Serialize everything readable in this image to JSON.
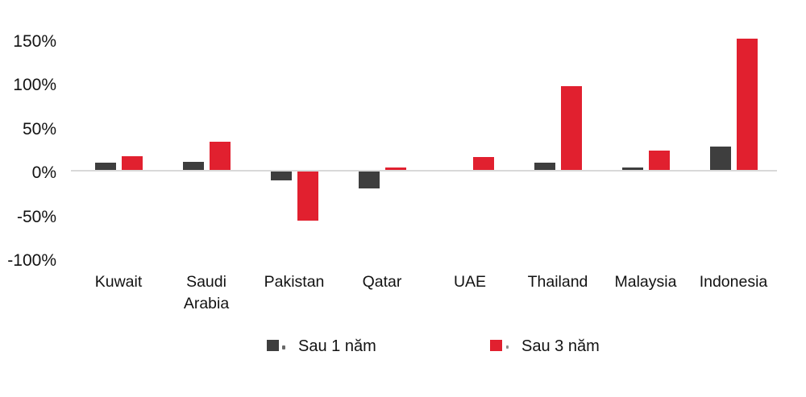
{
  "chart_data": {
    "type": "bar",
    "title": "",
    "xlabel": "",
    "ylabel": "",
    "unit": "%",
    "categories": [
      "Kuwait",
      "Saudi Arabia",
      "Pakistan",
      "Qatar",
      "UAE",
      "Thailand",
      "Malaysia",
      "Indonesia"
    ],
    "series": [
      {
        "name": "Sau 1 năm",
        "color": "#3e3e3e",
        "values": [
          8,
          9,
          -10,
          -19,
          0,
          8,
          3,
          27
        ]
      },
      {
        "name": "Sau 3 năm",
        "color": "#e1202f",
        "values": [
          16,
          32,
          -56,
          3,
          15,
          95,
          22,
          150
        ]
      }
    ],
    "ylim": [
      -100,
      150
    ],
    "y_ticks": [
      {
        "label": "150%",
        "value": 150
      },
      {
        "label": "100%",
        "value": 100
      },
      {
        "label": "50%",
        "value": 50
      },
      {
        "label": "0%",
        "value": 0
      },
      {
        "label": "-50%",
        "value": -50
      },
      {
        "label": "-100%",
        "value": -100
      }
    ],
    "grid": false,
    "legend_position": "bottom",
    "axis_line_color": "#d9d9d9"
  }
}
